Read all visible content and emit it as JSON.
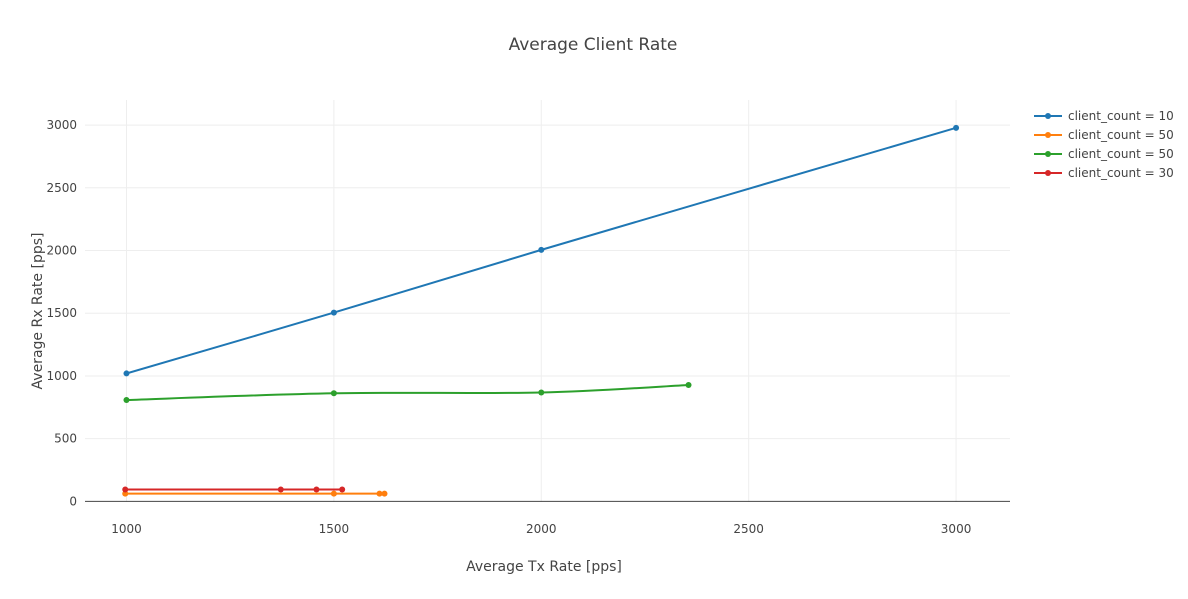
{
  "chart_data": {
    "type": "line",
    "title": "Average Client Rate",
    "xlabel": "Average Tx Rate [pps]",
    "ylabel": "Average Rx Rate [pps]",
    "xlim": [
      900,
      3130
    ],
    "ylim": [
      -5,
      3200
    ],
    "xticks": [
      1000,
      1500,
      2000,
      2500,
      3000
    ],
    "yticks": [
      0,
      500,
      1000,
      1500,
      2000,
      2500,
      3000
    ],
    "grid": true,
    "legend_position": "top-right",
    "series": [
      {
        "name": "client_count = 10",
        "color": "#1f77b4",
        "x": [
          1000,
          1500,
          2000,
          3000
        ],
        "y": [
          1020,
          1505,
          2005,
          2978
        ]
      },
      {
        "name": "client_count = 50",
        "color": "#ff7f0e",
        "x": [
          997,
          1500,
          1610,
          1622
        ],
        "y": [
          62,
          62,
          62,
          62
        ]
      },
      {
        "name": "client_count = 50",
        "color": "#2ca02c",
        "x": [
          1000,
          1500,
          2000,
          2355
        ],
        "y": [
          808,
          862,
          868,
          928
        ]
      },
      {
        "name": "client_count = 30",
        "color": "#d62728",
        "x": [
          997,
          1372,
          1458,
          1520
        ],
        "y": [
          95,
          95,
          95,
          95
        ]
      }
    ]
  }
}
